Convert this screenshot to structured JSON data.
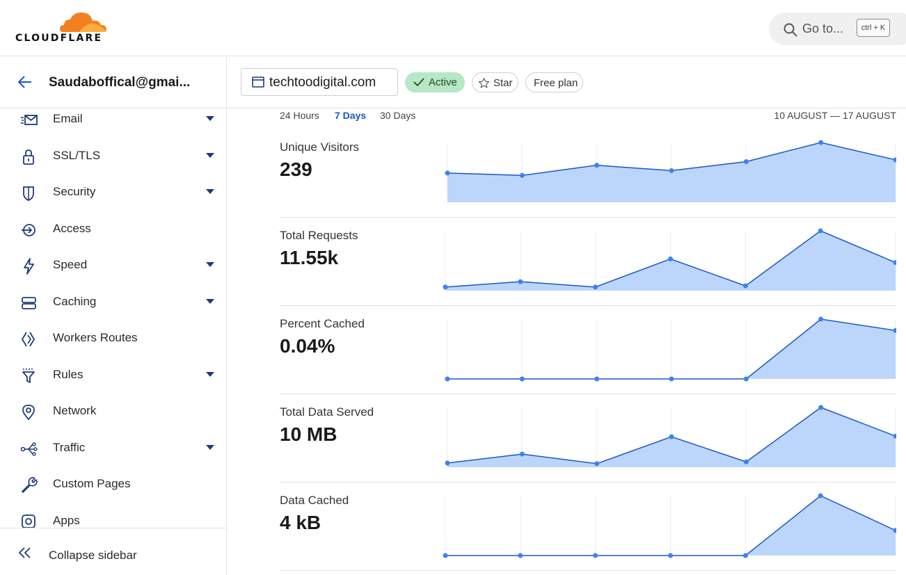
{
  "header": {
    "logo_text": "CLOUDFLARE",
    "goto_label": "Go to...",
    "goto_shortcut": "ctrl + K",
    "brand_color": "#f38020"
  },
  "sidebar": {
    "account": "Saudaboffical@gmai...",
    "items": [
      {
        "label": "Email",
        "icon": "email-icon",
        "expandable": true
      },
      {
        "label": "SSL/TLS",
        "icon": "lock-icon",
        "expandable": true
      },
      {
        "label": "Security",
        "icon": "shield-icon",
        "expandable": true
      },
      {
        "label": "Access",
        "icon": "access-icon",
        "expandable": false
      },
      {
        "label": "Speed",
        "icon": "lightning-icon",
        "expandable": true
      },
      {
        "label": "Caching",
        "icon": "server-icon",
        "expandable": true
      },
      {
        "label": "Workers Routes",
        "icon": "workers-icon",
        "expandable": false
      },
      {
        "label": "Rules",
        "icon": "funnel-icon",
        "expandable": true
      },
      {
        "label": "Network",
        "icon": "location-pin-icon",
        "expandable": false
      },
      {
        "label": "Traffic",
        "icon": "traffic-icon",
        "expandable": true
      },
      {
        "label": "Custom Pages",
        "icon": "wrench-icon",
        "expandable": false
      },
      {
        "label": "Apps",
        "icon": "apps-icon",
        "expandable": false
      }
    ],
    "collapse_label": "Collapse sidebar",
    "icon_color": "#1f3a7a"
  },
  "zone": {
    "name": "techtoodigital.com",
    "status": "Active",
    "star_label": "Star",
    "plan": "Free plan"
  },
  "main": {
    "ranges": [
      "24 Hours",
      "7 Days",
      "30 Days"
    ],
    "selected_range": "7 Days",
    "date_range": "10 AUGUST — 17 AUGUST",
    "metrics": [
      {
        "label": "Unique Visitors",
        "value": "239"
      },
      {
        "label": "Total Requests",
        "value": "11.55k"
      },
      {
        "label": "Percent Cached",
        "value": "0.04%"
      },
      {
        "label": "Total Data Served",
        "value": "10 MB"
      },
      {
        "label": "Data Cached",
        "value": "4 kB"
      }
    ]
  },
  "chart_data": [
    {
      "type": "area",
      "series": [
        {
          "values": [
            0.49,
            0.45,
            0.62,
            0.53,
            0.68,
            1.0,
            0.71
          ]
        }
      ],
      "ylim": [
        0,
        1
      ]
    },
    {
      "type": "area",
      "series": [
        {
          "values": [
            0.06,
            0.15,
            0.06,
            0.53,
            0.08,
            1.0,
            0.47
          ]
        }
      ],
      "ylim": [
        0,
        1
      ]
    },
    {
      "type": "area",
      "series": [
        {
          "values": [
            0,
            0,
            0,
            0,
            0,
            1.0,
            0.81
          ]
        }
      ],
      "ylim": [
        0,
        1
      ]
    },
    {
      "type": "area",
      "series": [
        {
          "values": [
            0.07,
            0.22,
            0.06,
            0.51,
            0.09,
            1.0,
            0.52
          ]
        }
      ],
      "ylim": [
        0,
        1
      ]
    },
    {
      "type": "area",
      "series": [
        {
          "values": [
            0,
            0,
            0,
            0,
            0,
            1.0,
            0.42
          ]
        }
      ],
      "ylim": [
        0,
        1
      ]
    }
  ]
}
